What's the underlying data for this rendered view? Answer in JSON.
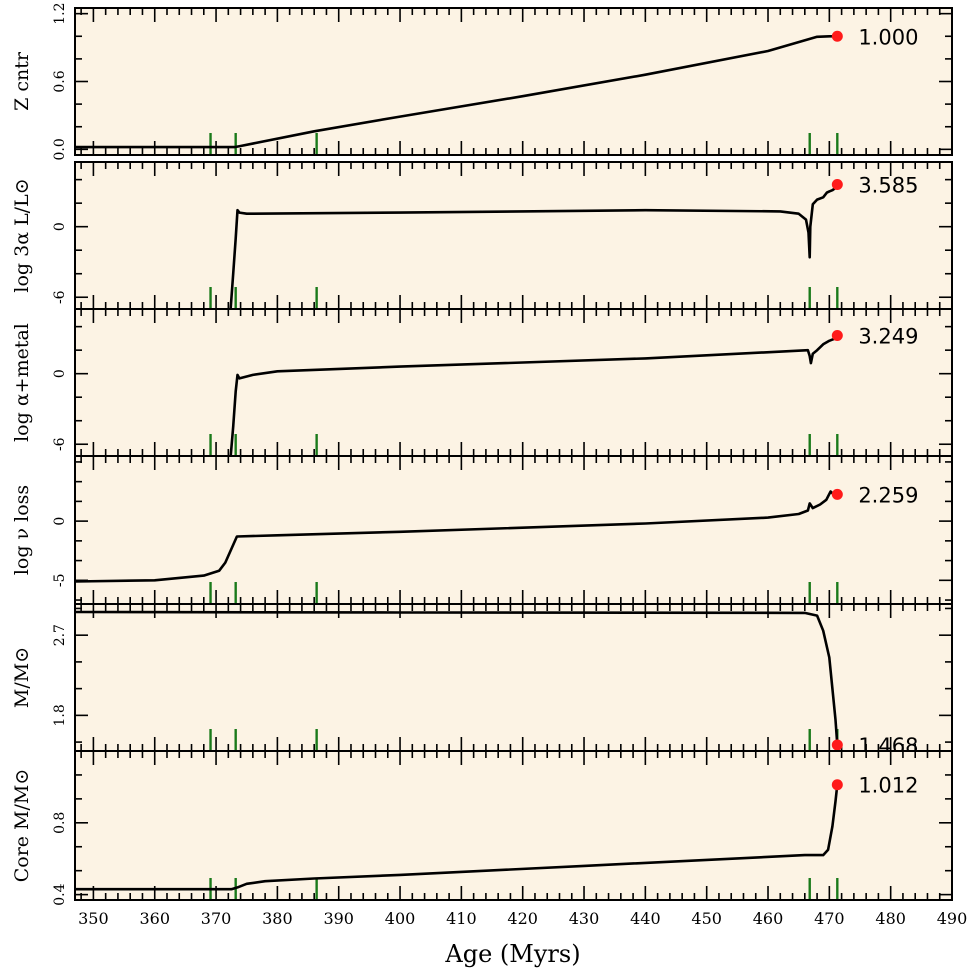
{
  "chart_data": {
    "type": "line",
    "xlabel": "Age (Myrs)",
    "xlim": [
      347,
      490
    ],
    "xticks": [
      350,
      360,
      370,
      380,
      390,
      400,
      410,
      420,
      430,
      440,
      450,
      460,
      470,
      480,
      490
    ],
    "xtick_labels": [
      "350",
      "360",
      "370",
      "380",
      "390",
      "400",
      "410",
      "420",
      "430",
      "440",
      "450",
      "460",
      "470",
      "480",
      "490"
    ],
    "grid": false,
    "background_color": "#fcf3e4",
    "line_color": "#000000",
    "marker_color": "#ff1a1a",
    "marker_line_color": "#1a7a1a",
    "marker_ages": [
      369.1,
      373.2,
      386.4,
      466.8,
      471.3
    ],
    "panels": [
      {
        "ylabel": "Z cntr",
        "ylim": [
          -0.05,
          1.25
        ],
        "yticks": [
          0.0,
          0.6,
          1.2
        ],
        "ytick_labels": [
          "0.0",
          "0.6",
          "1.2"
        ],
        "value_label": "1.000",
        "current": {
          "x": 471.3,
          "y": 1.0
        },
        "x": [
          347,
          372.3,
          373,
          374,
          386,
          400,
          420,
          440,
          460,
          468,
          470,
          471.3
        ],
        "y": [
          0.02,
          0.02,
          0.02,
          0.03,
          0.16,
          0.29,
          0.47,
          0.66,
          0.87,
          0.995,
          1.0,
          1.0
        ]
      },
      {
        "ylabel": "log 3α L/L⊙",
        "ylim": [
          -7,
          5.5
        ],
        "yticks": [
          -6,
          0
        ],
        "ytick_labels": [
          "-6",
          "0"
        ],
        "value_label": "3.585",
        "current": {
          "x": 471.3,
          "y": 3.585
        },
        "x": [
          372.3,
          372.8,
          373.2,
          373.5,
          373.8,
          375,
          400,
          440,
          462,
          465,
          466.2,
          466.6,
          466.8,
          466.9,
          467.3,
          468,
          469,
          469.6,
          470,
          470.5,
          471,
          471.3
        ],
        "y": [
          -7.5,
          -4.0,
          -1.0,
          1.4,
          1.2,
          1.1,
          1.2,
          1.4,
          1.3,
          1.1,
          0.6,
          -0.5,
          -2.6,
          0.0,
          1.9,
          2.3,
          2.5,
          2.9,
          3.0,
          3.1,
          3.3,
          3.585
        ]
      },
      {
        "ylabel": "log α+metal",
        "ylim": [
          -7,
          5.5
        ],
        "yticks": [
          -6,
          0
        ],
        "ytick_labels": [
          "-6",
          "0"
        ],
        "value_label": "3.249",
        "current": {
          "x": 471.3,
          "y": 3.249
        },
        "x": [
          372.3,
          372.8,
          373.2,
          373.5,
          373.8,
          376,
          380,
          400,
          440,
          466.5,
          466.8,
          467.0,
          467.3,
          468,
          469,
          470,
          470.5,
          471,
          471.3
        ],
        "y": [
          -7.5,
          -4.5,
          -1.5,
          -0.1,
          -0.4,
          -0.1,
          0.2,
          0.6,
          1.3,
          2.0,
          1.5,
          0.9,
          1.7,
          2.0,
          2.5,
          2.8,
          2.9,
          3.0,
          3.249
        ]
      },
      {
        "ylabel": "log ν loss",
        "ylim": [
          -7,
          5.5
        ],
        "yticks": [
          -5,
          0
        ],
        "ytick_labels": [
          "-5",
          "0"
        ],
        "value_label": "2.259",
        "current": {
          "x": 471.3,
          "y": 2.259
        },
        "x": [
          347,
          360,
          368,
          370.5,
          371.5,
          373.4,
          380,
          400,
          440,
          460,
          465,
          466.5,
          466.8,
          467.3,
          468.5,
          469.5,
          470.2,
          470.8,
          471.3
        ],
        "y": [
          -5.1,
          -5.0,
          -4.6,
          -4.2,
          -3.5,
          -1.3,
          -1.2,
          -0.9,
          -0.2,
          0.3,
          0.6,
          0.9,
          1.5,
          1.1,
          1.4,
          1.8,
          2.5,
          2.2,
          2.259
        ]
      },
      {
        "ylabel": "M/M⊙",
        "ylim": [
          1.4,
          3.05
        ],
        "yticks": [
          1.8,
          2.7
        ],
        "ytick_labels": [
          "1.8",
          "2.7"
        ],
        "value_label": "1.468",
        "current": {
          "x": 471.3,
          "y": 1.468
        },
        "x": [
          347,
          400,
          466,
          468,
          469,
          470,
          470.5,
          471.0,
          471.3
        ],
        "y": [
          2.96,
          2.955,
          2.95,
          2.92,
          2.75,
          2.45,
          2.1,
          1.75,
          1.468
        ]
      },
      {
        "ylabel": "Core M/M⊙",
        "ylim": [
          0.37,
          1.2
        ],
        "yticks": [
          0.4,
          0.8
        ],
        "ytick_labels": [
          "0.4",
          "0.8"
        ],
        "value_label": "1.012",
        "current": {
          "x": 471.3,
          "y": 1.012
        },
        "x": [
          347,
          372.5,
          373.5,
          375,
          378,
          386,
          400,
          430,
          466,
          469,
          469.8,
          470.5,
          471.0,
          471.3
        ],
        "y": [
          0.43,
          0.43,
          0.44,
          0.46,
          0.475,
          0.49,
          0.51,
          0.56,
          0.62,
          0.62,
          0.65,
          0.78,
          0.92,
          1.012
        ]
      }
    ]
  }
}
